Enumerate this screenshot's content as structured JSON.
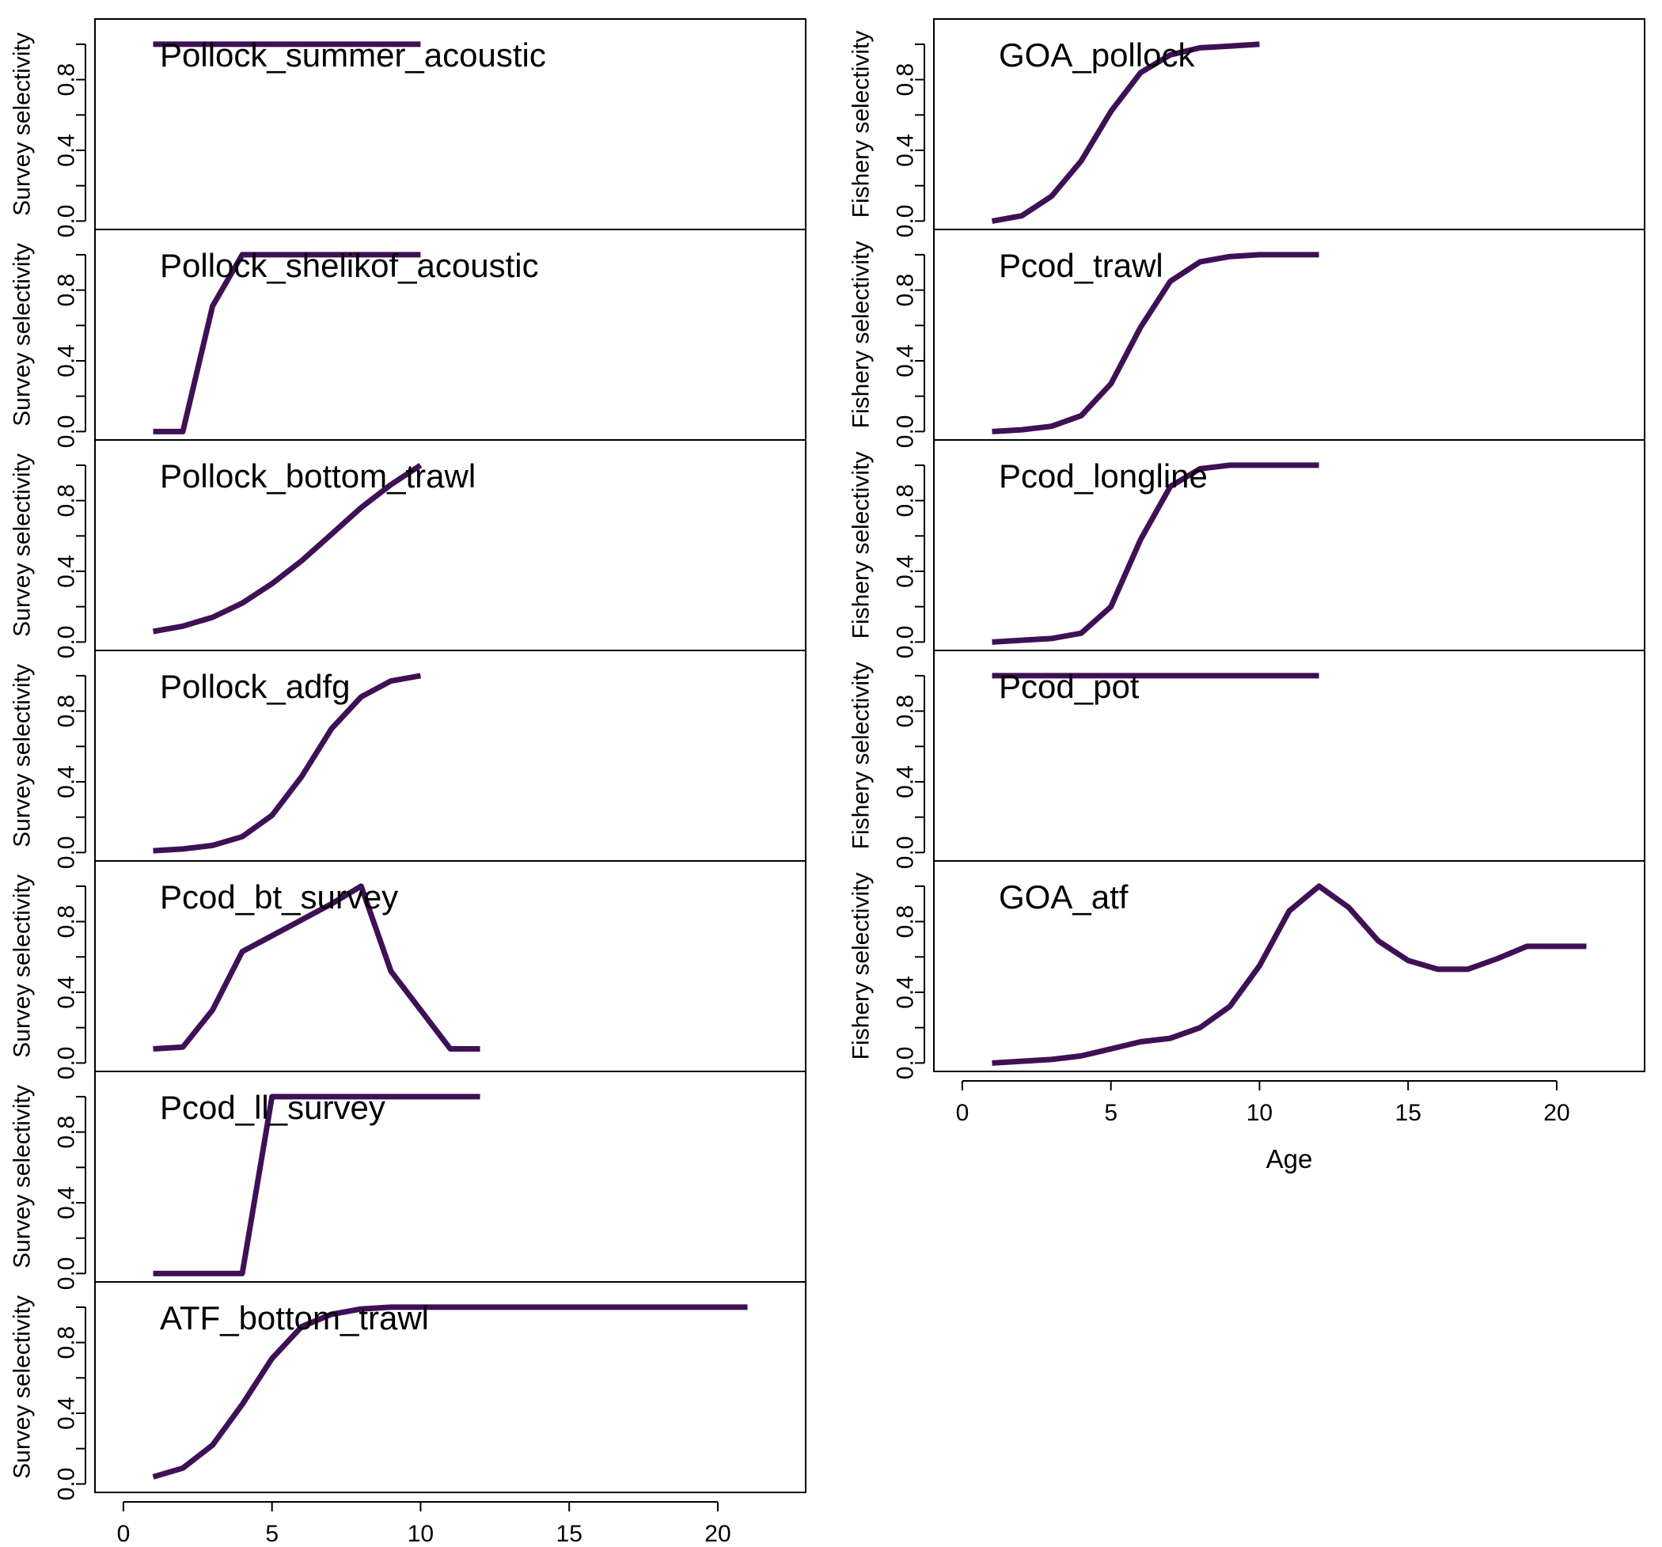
{
  "chart_data": {
    "type": "line",
    "line_color": "#3f1055",
    "xlim": [
      0,
      22
    ],
    "ylim": [
      0,
      1
    ],
    "y_ticks": [
      0.0,
      0.4,
      0.8
    ],
    "y_tick_labels": [
      "0.0",
      "0.4",
      "0.8"
    ],
    "x_ticks": [
      0,
      5,
      10,
      15,
      20
    ],
    "x_tick_labels": [
      "0",
      "5",
      "10",
      "15",
      "20"
    ],
    "grid": false,
    "columns": [
      {
        "ylabel": "Survey selectivity",
        "xlabel": "",
        "panels": [
          {
            "title": "Pollock_summer_acoustic",
            "x": [
              1,
              2,
              3,
              4,
              5,
              6,
              7,
              8,
              9,
              10
            ],
            "values": [
              1,
              1,
              1,
              1,
              1,
              1,
              1,
              1,
              1,
              1
            ]
          },
          {
            "title": "Pollock_shelikof_acoustic",
            "x": [
              1,
              2,
              3,
              4,
              5,
              6,
              7,
              8,
              9,
              10
            ],
            "values": [
              0,
              0,
              0.71,
              1,
              1,
              1,
              1,
              1,
              1,
              1
            ]
          },
          {
            "title": "Pollock_bottom_trawl",
            "x": [
              1,
              2,
              3,
              4,
              5,
              6,
              7,
              8,
              9,
              10
            ],
            "values": [
              0.06,
              0.09,
              0.14,
              0.22,
              0.33,
              0.46,
              0.61,
              0.76,
              0.89,
              1.0
            ]
          },
          {
            "title": "Pollock_adfg",
            "x": [
              1,
              2,
              3,
              4,
              5,
              6,
              7,
              8,
              9,
              10
            ],
            "values": [
              0.01,
              0.02,
              0.04,
              0.09,
              0.21,
              0.43,
              0.7,
              0.88,
              0.97,
              1.0
            ]
          },
          {
            "title": "Pcod_bt_survey",
            "x": [
              1,
              2,
              3,
              4,
              5,
              6,
              7,
              8,
              9,
              10,
              11,
              12
            ],
            "values": [
              0.08,
              0.09,
              0.3,
              0.63,
              0.72,
              0.81,
              0.9,
              1.0,
              0.52,
              0.3,
              0.08,
              0.08
            ]
          },
          {
            "title": "Pcod_ll_survey",
            "x": [
              1,
              2,
              3,
              4,
              5,
              6,
              7,
              8,
              9,
              10,
              11,
              12
            ],
            "values": [
              0,
              0,
              0,
              0,
              1,
              1,
              1,
              1,
              1,
              1,
              1,
              1
            ]
          },
          {
            "title": "ATF_bottom_trawl",
            "x": [
              1,
              2,
              3,
              4,
              5,
              6,
              7,
              8,
              9,
              10,
              11,
              12,
              13,
              14,
              15,
              16,
              17,
              18,
              19,
              20,
              21
            ],
            "values": [
              0.04,
              0.09,
              0.22,
              0.45,
              0.71,
              0.89,
              0.96,
              0.99,
              1,
              1,
              1,
              1,
              1,
              1,
              1,
              1,
              1,
              1,
              1,
              1,
              1
            ]
          }
        ]
      },
      {
        "ylabel": "Fishery selectivity",
        "xlabel": "Age",
        "panels": [
          {
            "title": "GOA_pollock",
            "x": [
              1,
              2,
              3,
              4,
              5,
              6,
              7,
              8,
              9,
              10
            ],
            "values": [
              0.0,
              0.03,
              0.14,
              0.34,
              0.62,
              0.84,
              0.94,
              0.98,
              0.99,
              1.0
            ]
          },
          {
            "title": "Pcod_trawl",
            "x": [
              1,
              2,
              3,
              4,
              5,
              6,
              7,
              8,
              9,
              10,
              11,
              12
            ],
            "values": [
              0.0,
              0.01,
              0.03,
              0.09,
              0.27,
              0.59,
              0.85,
              0.96,
              0.99,
              1,
              1,
              1
            ]
          },
          {
            "title": "Pcod_longline",
            "x": [
              1,
              2,
              3,
              4,
              5,
              6,
              7,
              8,
              9,
              10,
              11,
              12
            ],
            "values": [
              0.0,
              0.01,
              0.02,
              0.05,
              0.2,
              0.58,
              0.88,
              0.98,
              1,
              1,
              1,
              1
            ]
          },
          {
            "title": "Pcod_pot",
            "x": [
              1,
              2,
              3,
              4,
              5,
              6,
              7,
              8,
              9,
              10,
              11,
              12
            ],
            "values": [
              1,
              1,
              1,
              1,
              1,
              1,
              1,
              1,
              1,
              1,
              1,
              1
            ]
          },
          {
            "title": "GOA_atf",
            "x": [
              1,
              2,
              3,
              4,
              5,
              6,
              7,
              8,
              9,
              10,
              11,
              12,
              13,
              14,
              15,
              16,
              17,
              18,
              19,
              20,
              21
            ],
            "values": [
              0.0,
              0.01,
              0.02,
              0.04,
              0.08,
              0.12,
              0.14,
              0.2,
              0.32,
              0.55,
              0.86,
              1.0,
              0.88,
              0.69,
              0.58,
              0.53,
              0.53,
              0.59,
              0.66,
              0.66,
              0.66
            ]
          }
        ]
      }
    ]
  }
}
